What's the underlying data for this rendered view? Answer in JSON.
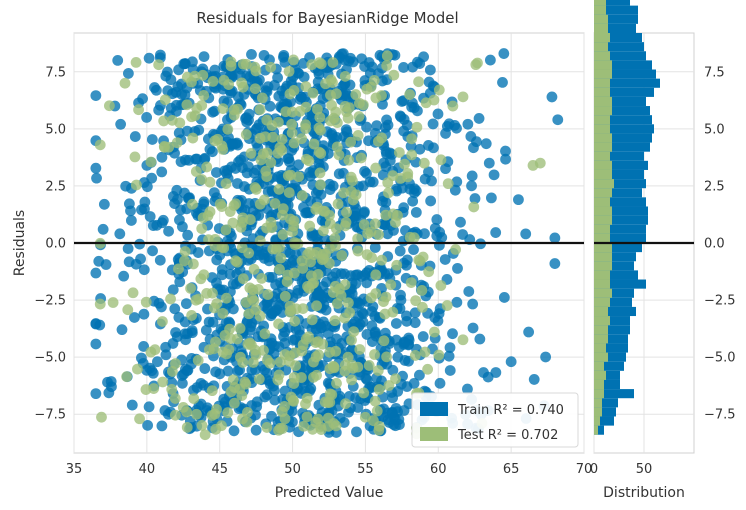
{
  "chart_data": [
    {
      "type": "scatter",
      "title": "Residuals for BayesianRidge Model",
      "xlabel": "Predicted Value",
      "ylabel": "Residuals",
      "xlim": [
        35,
        70
      ],
      "ylim": [
        -9.2,
        9.2
      ],
      "xticks": [
        35,
        40,
        45,
        50,
        55,
        60,
        65,
        70
      ],
      "yticks": [
        -7.5,
        -5.0,
        -2.5,
        0.0,
        2.5,
        5.0,
        7.5
      ],
      "xtick_labels": [
        "35",
        "40",
        "45",
        "50",
        "55",
        "60",
        "65",
        "70"
      ],
      "ytick_labels": [
        "−7.5",
        "−5.0",
        "−2.5",
        "0.0",
        "2.5",
        "5.0",
        "7.5"
      ],
      "grid": true,
      "reference_line_y": 0,
      "legend_position": "bottom-right",
      "series": [
        {
          "name": "Train",
          "legend_label": "Train R² = 0.740",
          "r2": 0.74,
          "color": "#0072B2",
          "point_count": 1500,
          "x_range": [
            36.5,
            68.2
          ],
          "y_range": [
            -8.3,
            8.3
          ]
        },
        {
          "name": "Test",
          "legend_label": "Test R² = 0.702",
          "r2": 0.702,
          "color": "#9DBE78",
          "point_count": 500,
          "x_range": [
            36.8,
            67.0
          ],
          "y_range": [
            -8.4,
            8.2
          ]
        }
      ],
      "sample_points": {
        "train": [
          [
            36.7,
            -0.8
          ],
          [
            37.0,
            0.6
          ],
          [
            37.3,
            -6.1
          ],
          [
            38.0,
            8.0
          ],
          [
            38.2,
            5.2
          ],
          [
            39.0,
            -7.1
          ],
          [
            40.0,
            3.4
          ],
          [
            41.0,
            -2.8
          ],
          [
            42.0,
            6.6
          ],
          [
            43.5,
            1.2
          ],
          [
            45.0,
            -4.3
          ],
          [
            46.5,
            7.8
          ],
          [
            47.5,
            -8.2
          ],
          [
            49.0,
            2.9
          ],
          [
            50.5,
            -5.6
          ],
          [
            52.0,
            4.1
          ],
          [
            53.0,
            -8.3
          ],
          [
            54.5,
            0.7
          ],
          [
            56.0,
            -3.3
          ],
          [
            57.5,
            6.2
          ],
          [
            59.0,
            -1.9
          ],
          [
            60.5,
            4.8
          ],
          [
            62.0,
            -6.4
          ],
          [
            63.5,
            3.5
          ],
          [
            64.5,
            8.3
          ],
          [
            65.0,
            -5.2
          ],
          [
            65.5,
            1.9
          ],
          [
            66.0,
            0.4
          ],
          [
            67.8,
            6.4
          ],
          [
            68.2,
            5.4
          ],
          [
            68.0,
            -0.9
          ],
          [
            66.2,
            -3.9
          ],
          [
            45.8,
            0.3
          ],
          [
            48.0,
            -0.5
          ],
          [
            58.0,
            0.2
          ]
        ],
        "test": [
          [
            36.8,
            4.3
          ],
          [
            38.5,
            7.0
          ],
          [
            39.5,
            -7.7
          ],
          [
            41.5,
            4.2
          ],
          [
            42.5,
            -7.2
          ],
          [
            44.0,
            -8.4
          ],
          [
            46.0,
            5.6
          ],
          [
            47.0,
            -3.1
          ],
          [
            48.5,
            7.7
          ],
          [
            51.0,
            -6.8
          ],
          [
            53.5,
            2.2
          ],
          [
            56.5,
            8.2
          ],
          [
            58.5,
            -8.1
          ],
          [
            61.0,
            6.0
          ],
          [
            63.0,
            -7.9
          ],
          [
            66.5,
            3.4
          ],
          [
            67.0,
            3.5
          ],
          [
            50.0,
            0.5
          ],
          [
            44.5,
            -2.2
          ]
        ]
      }
    },
    {
      "type": "bar",
      "orientation": "horizontal",
      "xlabel": "Distribution",
      "xticks": [
        0,
        50
      ],
      "xtick_labels": [
        "0",
        "50"
      ],
      "xlim": [
        0,
        100
      ],
      "ylim": [
        -9.2,
        9.2
      ],
      "yticks": [
        -7.5,
        -5.0,
        -2.5,
        0.0,
        2.5,
        5.0,
        7.5
      ],
      "ytick_labels": [
        "−7.5",
        "−5.0",
        "−2.5",
        "0.0",
        "2.5",
        "5.0",
        "7.5"
      ],
      "bin_width": 0.4,
      "bin_start": -8.4,
      "series": [
        {
          "name": "Train",
          "color": "#0072B2",
          "values": [
            10,
            20,
            22,
            24,
            40,
            26,
            26,
            30,
            32,
            34,
            34,
            36,
            36,
            42,
            38,
            40,
            52,
            44,
            40,
            42,
            48,
            52,
            52,
            54,
            54,
            52,
            48,
            52,
            50,
            54,
            50,
            56,
            58,
            60,
            58,
            56,
            52,
            60,
            66,
            62,
            58,
            52,
            50,
            48,
            42,
            44,
            44,
            36,
            34,
            36,
            38,
            36,
            30,
            34,
            30,
            28,
            22,
            24,
            14,
            12,
            16,
            12
          ]
        },
        {
          "name": "Test",
          "color": "#9DBE78",
          "values": [
            4,
            6,
            8,
            8,
            10,
            10,
            12,
            10,
            14,
            12,
            14,
            14,
            16,
            14,
            16,
            18,
            16,
            16,
            18,
            18,
            18,
            16,
            16,
            18,
            18,
            16,
            18,
            20,
            18,
            18,
            16,
            18,
            18,
            16,
            16,
            18,
            18,
            16,
            16,
            18,
            18,
            16,
            14,
            16,
            14,
            14,
            12,
            12,
            12,
            14,
            12,
            10,
            10,
            10,
            8,
            8,
            8,
            6,
            6,
            4,
            4,
            2
          ]
        }
      ]
    }
  ]
}
